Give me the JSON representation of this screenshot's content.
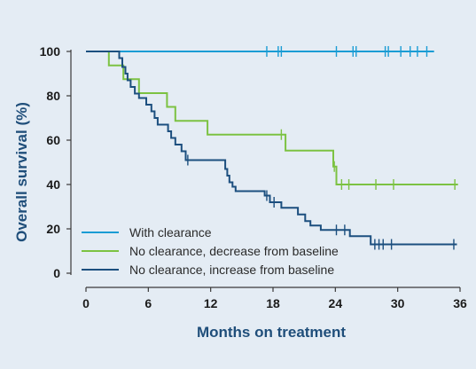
{
  "chart_data": {
    "type": "line",
    "title": "",
    "xlabel": "Months on treatment",
    "ylabel": "Overall survival (%)",
    "xlim": [
      0,
      36
    ],
    "ylim": [
      0,
      100
    ],
    "x_ticks": [
      0,
      6,
      12,
      18,
      24,
      30,
      36
    ],
    "y_ticks": [
      0,
      20,
      40,
      60,
      80,
      100
    ],
    "grid": false,
    "legend_position": "bottom-left",
    "series": [
      {
        "name": "With clearance",
        "color": "#1a9cd4",
        "steps": [
          [
            0,
            100
          ],
          [
            33.5,
            100
          ]
        ],
        "censored": [
          17.4,
          18.5,
          18.8,
          24.1,
          25.7,
          26.0,
          28.8,
          29.1,
          30.3,
          31.2,
          31.9,
          32.8
        ]
      },
      {
        "name": "No clearance, decrease from baseline",
        "color": "#7cc242",
        "steps": [
          [
            0,
            100
          ],
          [
            2.2,
            100
          ],
          [
            2.2,
            93.7
          ],
          [
            3.6,
            93.7
          ],
          [
            3.6,
            87.5
          ],
          [
            5.1,
            87.5
          ],
          [
            5.1,
            81.2
          ],
          [
            7.8,
            81.2
          ],
          [
            7.8,
            75
          ],
          [
            8.6,
            75
          ],
          [
            8.6,
            68.7
          ],
          [
            11.7,
            68.7
          ],
          [
            11.7,
            62.5
          ],
          [
            19.2,
            62.5
          ],
          [
            19.2,
            55.3
          ],
          [
            23.8,
            55.3
          ],
          [
            23.8,
            48.1
          ],
          [
            24.1,
            48.1
          ],
          [
            24.1,
            40
          ],
          [
            35.8,
            40
          ]
        ],
        "censored": [
          18.8,
          23.9,
          24.6,
          25.3,
          27.9,
          29.6,
          35.5
        ]
      },
      {
        "name": "No clearance, increase from baseline",
        "color": "#1c4f7f",
        "steps": [
          [
            0,
            100
          ],
          [
            3.2,
            100
          ],
          [
            3.2,
            97
          ],
          [
            3.5,
            97
          ],
          [
            3.5,
            93
          ],
          [
            3.8,
            93
          ],
          [
            3.8,
            90
          ],
          [
            4.0,
            90
          ],
          [
            4.0,
            87
          ],
          [
            4.3,
            87
          ],
          [
            4.3,
            84
          ],
          [
            4.7,
            84
          ],
          [
            4.7,
            81
          ],
          [
            5.1,
            81
          ],
          [
            5.1,
            79
          ],
          [
            5.8,
            79
          ],
          [
            5.8,
            76
          ],
          [
            6.3,
            76
          ],
          [
            6.3,
            73
          ],
          [
            6.6,
            73
          ],
          [
            6.6,
            70
          ],
          [
            6.9,
            70
          ],
          [
            6.9,
            67
          ],
          [
            7.9,
            67
          ],
          [
            7.9,
            64
          ],
          [
            8.2,
            64
          ],
          [
            8.2,
            61
          ],
          [
            8.6,
            61
          ],
          [
            8.6,
            58
          ],
          [
            9.2,
            58
          ],
          [
            9.2,
            55
          ],
          [
            9.6,
            55
          ],
          [
            9.6,
            51
          ],
          [
            13.4,
            51
          ],
          [
            13.4,
            47
          ],
          [
            13.6,
            47
          ],
          [
            13.6,
            44
          ],
          [
            13.8,
            44
          ],
          [
            13.8,
            41
          ],
          [
            14.1,
            41
          ],
          [
            14.1,
            39
          ],
          [
            14.4,
            39
          ],
          [
            14.4,
            37
          ],
          [
            17.2,
            37
          ],
          [
            17.2,
            35
          ],
          [
            17.7,
            35
          ],
          [
            17.7,
            32
          ],
          [
            18.8,
            32
          ],
          [
            18.8,
            29.5
          ],
          [
            20.4,
            29.5
          ],
          [
            20.4,
            26.5
          ],
          [
            21.1,
            26.5
          ],
          [
            21.1,
            23.5
          ],
          [
            21.6,
            23.5
          ],
          [
            21.6,
            21.5
          ],
          [
            22.6,
            21.5
          ],
          [
            22.6,
            19.5
          ],
          [
            25.4,
            19.5
          ],
          [
            25.4,
            16.7
          ],
          [
            27.4,
            16.7
          ],
          [
            27.4,
            13
          ],
          [
            35.7,
            13
          ]
        ],
        "censored": [
          9.8,
          17.4,
          18.1,
          24.1,
          24.9,
          27.8,
          28.2,
          28.6,
          29.4,
          35.4
        ]
      }
    ]
  }
}
